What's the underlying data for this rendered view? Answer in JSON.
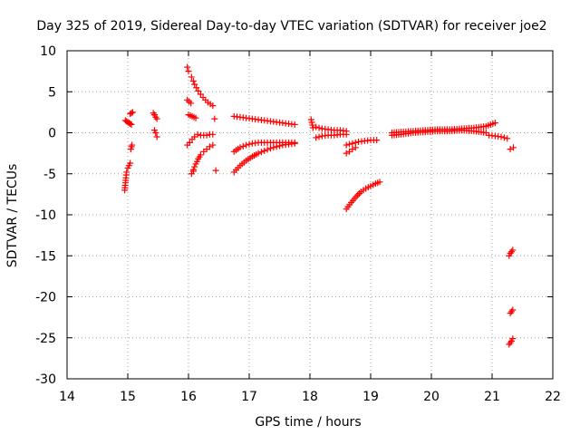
{
  "chart_data": {
    "type": "scatter",
    "title": "Day 325 of 2019, Sidereal Day-to-day VTEC variation (SDTVAR) for receiver joe2",
    "xlabel": "GPS time / hours",
    "ylabel": "SDTVAR / TECUs",
    "xlim": [
      14,
      22
    ],
    "ylim": [
      -30,
      10
    ],
    "xticks": [
      14,
      15,
      16,
      17,
      18,
      19,
      20,
      21,
      22
    ],
    "yticks": [
      10,
      5,
      0,
      -5,
      -10,
      -15,
      -20,
      -25,
      -30
    ],
    "grid": true,
    "marker": "+",
    "series_color": "#ff0000",
    "series": [
      {
        "name": "seg1",
        "x": [
          14.95,
          14.97,
          14.98,
          15.0,
          15.02,
          15.04
        ],
        "y": [
          -7.0,
          -5.5,
          -4.8,
          -4.3,
          -4.0,
          -3.7
        ]
      },
      {
        "name": "seg2",
        "x": [
          15.05,
          15.06,
          15.07
        ],
        "y": [
          -2.0,
          -1.7,
          -1.5
        ]
      },
      {
        "name": "seg3",
        "x": [
          14.96,
          14.98,
          15.0,
          15.02,
          15.04,
          15.06
        ],
        "y": [
          1.5,
          1.4,
          1.3,
          1.2,
          1.1,
          1.0
        ]
      },
      {
        "name": "seg4",
        "x": [
          15.04,
          15.06,
          15.08
        ],
        "y": [
          2.3,
          2.4,
          2.5
        ]
      },
      {
        "name": "seg5",
        "x": [
          15.42,
          15.44,
          15.46,
          15.48
        ],
        "y": [
          2.4,
          2.2,
          1.9,
          1.7
        ]
      },
      {
        "name": "seg6",
        "x": [
          15.44,
          15.46,
          15.48
        ],
        "y": [
          0.3,
          0.0,
          -0.5
        ]
      },
      {
        "name": "seg7",
        "x": [
          15.98,
          16.0
        ],
        "y": [
          8.0,
          7.5
        ]
      },
      {
        "name": "seg8",
        "x": [
          16.05,
          16.08,
          16.1,
          16.13,
          16.16,
          16.2,
          16.24,
          16.28,
          16.32,
          16.36,
          16.4
        ],
        "y": [
          6.8,
          6.3,
          5.9,
          5.5,
          5.1,
          4.7,
          4.3,
          4.0,
          3.7,
          3.5,
          3.3
        ]
      },
      {
        "name": "seg9",
        "x": [
          15.98,
          16.04
        ],
        "y": [
          4.0,
          3.6
        ]
      },
      {
        "name": "seg10",
        "x": [
          16.0,
          16.03,
          16.06,
          16.09,
          16.12
        ],
        "y": [
          2.2,
          2.1,
          2.0,
          1.9,
          1.8
        ]
      },
      {
        "name": "seg11",
        "x": [
          16.43
        ],
        "y": [
          1.7
        ]
      },
      {
        "name": "seg12",
        "x": [
          16.15,
          16.2,
          16.25,
          16.3,
          16.35,
          16.4
        ],
        "y": [
          -0.2,
          -0.3,
          -0.3,
          -0.3,
          -0.2,
          -0.2
        ]
      },
      {
        "name": "seg13",
        "x": [
          15.98,
          16.02,
          16.06,
          16.1
        ],
        "y": [
          -1.5,
          -1.2,
          -0.8,
          -0.5
        ]
      },
      {
        "name": "seg14",
        "x": [
          16.08,
          16.12,
          16.16,
          16.2,
          16.25,
          16.3,
          16.35,
          16.4
        ],
        "y": [
          -4.5,
          -3.8,
          -3.2,
          -2.7,
          -2.3,
          -2.0,
          -1.7,
          -1.5
        ]
      },
      {
        "name": "seg15",
        "x": [
          16.05,
          16.08
        ],
        "y": [
          -5.0,
          -4.7
        ]
      },
      {
        "name": "seg16",
        "x": [
          16.45
        ],
        "y": [
          -4.6
        ]
      },
      {
        "name": "seg17",
        "x": [
          16.75,
          16.85,
          16.95,
          17.05,
          17.15,
          17.25,
          17.35,
          17.45,
          17.55,
          17.65,
          17.75
        ],
        "y": [
          2.0,
          1.9,
          1.8,
          1.7,
          1.6,
          1.5,
          1.4,
          1.3,
          1.2,
          1.1,
          1.0
        ]
      },
      {
        "name": "seg18",
        "x": [
          16.75,
          16.85,
          16.95,
          17.05,
          17.15,
          17.25,
          17.35,
          17.45,
          17.55,
          17.65,
          17.75
        ],
        "y": [
          -2.3,
          -1.8,
          -1.5,
          -1.3,
          -1.2,
          -1.2,
          -1.2,
          -1.2,
          -1.2,
          -1.2,
          -1.2
        ]
      },
      {
        "name": "seg19",
        "x": [
          16.75,
          16.85,
          16.95,
          17.05,
          17.15,
          17.25,
          17.35,
          17.45,
          17.55,
          17.65,
          17.75
        ],
        "y": [
          -4.8,
          -4.0,
          -3.4,
          -2.9,
          -2.5,
          -2.2,
          -1.9,
          -1.7,
          -1.5,
          -1.4,
          -1.3
        ]
      },
      {
        "name": "seg20",
        "x": [
          18.02,
          18.05
        ],
        "y": [
          1.6,
          0.6
        ]
      },
      {
        "name": "seg21",
        "x": [
          18.1,
          18.2,
          18.3,
          18.4,
          18.5,
          18.6
        ],
        "y": [
          0.7,
          0.5,
          0.4,
          0.3,
          0.3,
          0.2
        ]
      },
      {
        "name": "seg22",
        "x": [
          18.1,
          18.2,
          18.3,
          18.4,
          18.5,
          18.6
        ],
        "y": [
          -0.6,
          -0.4,
          -0.3,
          -0.3,
          -0.2,
          -0.2
        ]
      },
      {
        "name": "seg23",
        "x": [
          18.6,
          18.65,
          18.7,
          18.75
        ],
        "y": [
          -2.5,
          -2.3,
          -2.0,
          -1.8
        ]
      },
      {
        "name": "seg24",
        "x": [
          18.6,
          18.7,
          18.8,
          18.9,
          19.0,
          19.1
        ],
        "y": [
          -1.5,
          -1.3,
          -1.1,
          -1.0,
          -0.9,
          -0.9
        ]
      },
      {
        "name": "seg25",
        "x": [
          18.6,
          18.68,
          18.76,
          18.84,
          18.92,
          19.0,
          19.08,
          19.15
        ],
        "y": [
          -9.3,
          -8.5,
          -7.8,
          -7.2,
          -6.8,
          -6.5,
          -6.2,
          -6.0
        ]
      },
      {
        "name": "seg26",
        "x": [
          19.35,
          19.5,
          19.7,
          19.9,
          20.1,
          20.3,
          20.5,
          20.7,
          20.9,
          21.05
        ],
        "y": [
          0.0,
          0.1,
          0.2,
          0.3,
          0.4,
          0.4,
          0.5,
          0.6,
          0.8,
          1.2
        ]
      },
      {
        "name": "seg27",
        "x": [
          19.35,
          19.5,
          19.7,
          19.9,
          20.1,
          20.3,
          20.5,
          20.7,
          20.9
        ],
        "y": [
          -0.3,
          -0.2,
          0.0,
          0.1,
          0.2,
          0.2,
          0.3,
          0.2,
          0.0
        ]
      },
      {
        "name": "seg28",
        "x": [
          20.95,
          21.05,
          21.15,
          21.25
        ],
        "y": [
          -0.3,
          -0.4,
          -0.5,
          -0.7
        ]
      },
      {
        "name": "seg29",
        "x": [
          21.3,
          21.35
        ],
        "y": [
          -2.0,
          -1.8
        ]
      },
      {
        "name": "seg30",
        "x": [
          21.28,
          21.3,
          21.32,
          21.34
        ],
        "y": [
          -15.0,
          -14.7,
          -14.5,
          -14.3
        ]
      },
      {
        "name": "seg31",
        "x": [
          21.3,
          21.32,
          21.34
        ],
        "y": [
          -22.0,
          -21.8,
          -21.6
        ]
      },
      {
        "name": "seg32",
        "x": [
          21.28,
          21.3,
          21.32,
          21.34
        ],
        "y": [
          -25.8,
          -25.6,
          -25.4,
          -25.1
        ]
      }
    ]
  }
}
